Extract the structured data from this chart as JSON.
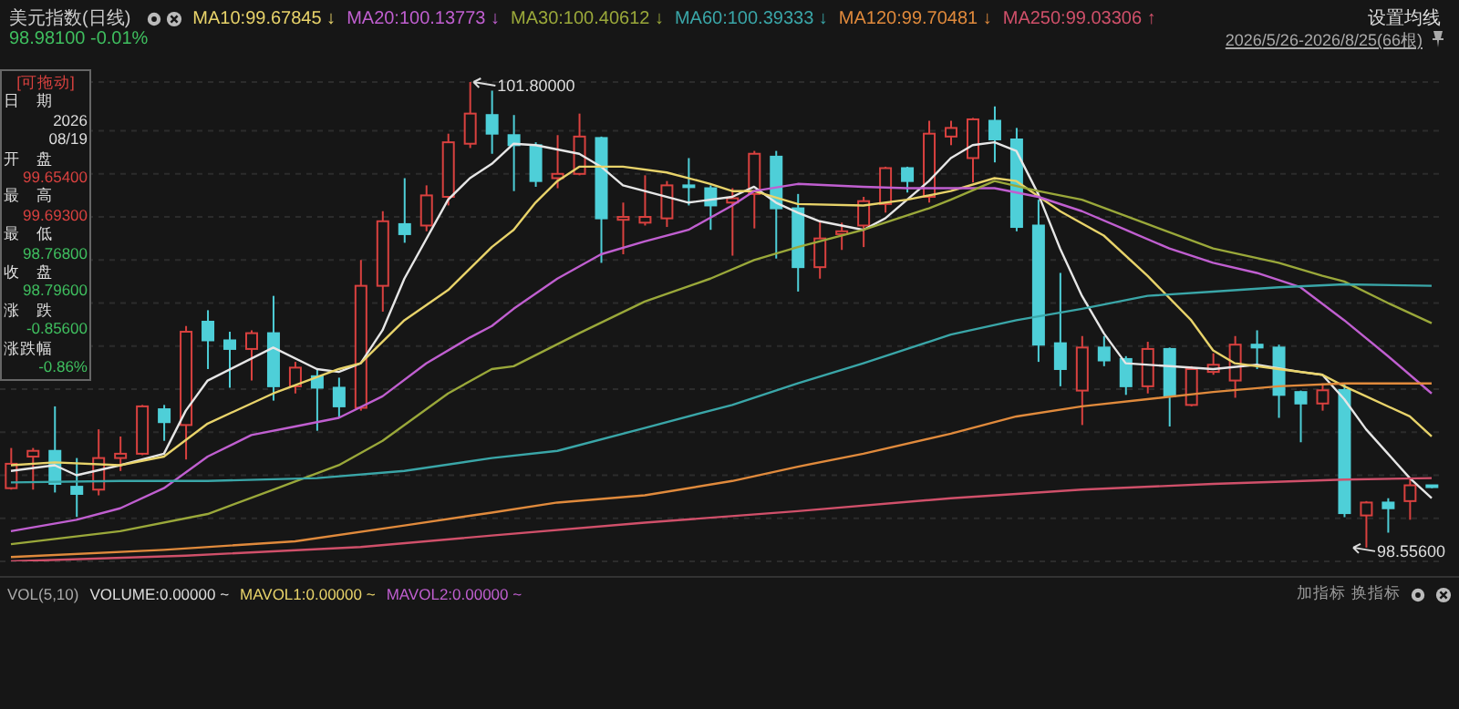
{
  "chart_data": {
    "type": "candlestick",
    "title": "美元指数(日线)",
    "legend": "top left",
    "grid": "y",
    "tick_labels": false,
    "categories": [
      null,
      null,
      null,
      null,
      null,
      null,
      null,
      null,
      null,
      null,
      null,
      null,
      null,
      null,
      null,
      null,
      null,
      null,
      null,
      null,
      null,
      null,
      null,
      null,
      null,
      null,
      null,
      null,
      null,
      null,
      null,
      null,
      null,
      null,
      null,
      null,
      null,
      null,
      null,
      null,
      null,
      null,
      null,
      null,
      null,
      null,
      null,
      null,
      null,
      null,
      null,
      null,
      null,
      null,
      null,
      null,
      null,
      null,
      null,
      null,
      null,
      null,
      null,
      null,
      null,
      null
    ],
    "ohlc": [
      [
        98.97,
        99.25,
        98.96,
        99.14
      ],
      [
        99.19,
        99.25,
        98.96,
        99.23
      ],
      [
        99.23,
        99.54,
        98.94,
        99.0
      ],
      [
        98.98,
        99.18,
        98.77,
        98.93
      ],
      [
        98.96,
        99.38,
        98.92,
        99.18
      ],
      [
        99.18,
        99.33,
        99.09,
        99.21
      ],
      [
        99.21,
        99.55,
        99.2,
        99.54
      ],
      [
        99.52,
        99.55,
        99.3,
        99.43
      ],
      [
        99.41,
        100.1,
        99.17,
        100.06
      ],
      [
        100.13,
        100.21,
        99.8,
        100.0
      ],
      [
        100.0,
        100.06,
        99.67,
        99.94
      ],
      [
        99.94,
        100.07,
        99.72,
        100.05
      ],
      [
        100.05,
        100.31,
        99.58,
        99.68
      ],
      [
        99.68,
        99.85,
        99.63,
        99.81
      ],
      [
        99.75,
        99.8,
        99.37,
        99.67
      ],
      [
        99.67,
        99.74,
        99.46,
        99.54
      ],
      [
        99.53,
        100.56,
        99.51,
        100.38
      ],
      [
        100.38,
        100.9,
        100.2,
        100.83
      ],
      [
        100.81,
        101.13,
        100.68,
        100.74
      ],
      [
        100.8,
        101.08,
        100.76,
        101.01
      ],
      [
        101.0,
        101.44,
        100.94,
        101.38
      ],
      [
        101.37,
        101.8,
        101.34,
        101.58
      ],
      [
        101.57,
        101.74,
        101.3,
        101.44
      ],
      [
        101.43,
        101.57,
        101.04,
        101.36
      ],
      [
        101.36,
        101.38,
        101.07,
        101.11
      ],
      [
        101.13,
        101.43,
        101.06,
        101.16
      ],
      [
        101.16,
        101.58,
        101.15,
        101.42
      ],
      [
        101.41,
        101.42,
        100.54,
        100.85
      ],
      [
        100.84,
        100.96,
        100.6,
        100.86
      ],
      [
        100.82,
        101.15,
        100.8,
        100.86
      ],
      [
        100.85,
        101.11,
        100.79,
        101.08
      ],
      [
        101.08,
        101.27,
        100.94,
        101.07
      ],
      [
        101.06,
        101.08,
        100.77,
        100.94
      ],
      [
        100.96,
        101.06,
        100.59,
        100.99
      ],
      [
        101.02,
        101.32,
        100.78,
        101.3
      ],
      [
        101.28,
        101.32,
        100.57,
        100.92
      ],
      [
        100.92,
        101.02,
        100.34,
        100.51
      ],
      [
        100.51,
        100.83,
        100.43,
        100.71
      ],
      [
        100.74,
        100.82,
        100.63,
        100.76
      ],
      [
        100.8,
        101.0,
        100.65,
        100.97
      ],
      [
        100.95,
        101.21,
        100.89,
        101.2
      ],
      [
        101.2,
        101.21,
        101.03,
        101.11
      ],
      [
        101.0,
        101.53,
        100.96,
        101.44
      ],
      [
        101.42,
        101.53,
        101.36,
        101.48
      ],
      [
        101.27,
        101.55,
        101.1,
        101.54
      ],
      [
        101.53,
        101.63,
        101.24,
        101.4
      ],
      [
        101.4,
        101.48,
        100.76,
        100.79
      ],
      [
        100.8,
        100.98,
        99.85,
        99.97
      ],
      [
        99.98,
        100.47,
        99.68,
        99.8
      ],
      [
        99.65,
        100.03,
        99.41,
        99.95
      ],
      [
        99.95,
        100.03,
        99.82,
        99.86
      ],
      [
        99.87,
        99.89,
        99.62,
        99.68
      ],
      [
        99.68,
        99.99,
        99.63,
        99.94
      ],
      [
        99.94,
        99.95,
        99.4,
        99.61
      ],
      [
        99.55,
        99.82,
        99.54,
        99.8
      ],
      [
        99.78,
        99.91,
        99.76,
        99.83
      ],
      [
        99.72,
        100.03,
        99.6,
        99.97
      ],
      [
        99.97,
        100.07,
        99.8,
        99.95
      ],
      [
        99.95,
        99.97,
        99.46,
        99.62
      ],
      [
        99.64,
        99.65,
        99.29,
        99.56
      ],
      [
        99.56,
        99.7,
        99.51,
        99.652
      ],
      [
        99.654,
        99.693,
        98.768,
        98.796
      ],
      [
        98.78,
        98.88,
        98.556,
        98.87
      ],
      [
        98.87,
        98.9,
        98.66,
        98.83
      ],
      [
        98.88,
        99.04,
        98.75,
        98.99
      ],
      [
        98.99,
        98.99,
        98.97,
        98.981
      ]
    ],
    "series": [
      {
        "type": "line",
        "color": "#e6e6e6",
        "values": [
          99.09,
          null,
          99.13,
          99.06,
          null,
          99.13,
          null,
          99.21,
          99.51,
          99.72,
          null,
          null,
          99.95,
          null,
          99.8,
          99.78,
          99.84,
          100.07,
          100.43,
          null,
          100.98,
          101.13,
          101.23,
          101.37,
          101.36,
          null,
          101.3,
          101.21,
          101.08,
          101.04,
          null,
          100.96,
          null,
          101.0,
          101.07,
          100.96,
          100.89,
          100.83,
          null,
          100.77,
          100.85,
          100.98,
          101.11,
          101.27,
          101.36,
          101.38,
          101.32,
          101.02,
          100.64,
          100.31,
          100.05,
          99.84,
          null,
          99.82,
          null,
          99.8,
          null,
          99.83,
          null,
          99.78,
          99.76,
          99.59,
          99.38,
          99.21,
          99.04,
          98.9
        ]
      },
      {
        "type": "line",
        "name": "MA10:99.67845 ↓",
        "color": "#e8d36a",
        "values": [
          99.13,
          null,
          99.15,
          null,
          null,
          99.13,
          null,
          99.19,
          null,
          99.42,
          null,
          null,
          99.63,
          null,
          null,
          99.8,
          99.84,
          null,
          100.14,
          null,
          100.35,
          null,
          100.65,
          100.77,
          100.96,
          101.11,
          101.21,
          null,
          101.21,
          null,
          101.17,
          null,
          101.09,
          101.04,
          101.04,
          null,
          100.95,
          null,
          null,
          100.94,
          null,
          100.98,
          null,
          101.04,
          null,
          101.13,
          101.11,
          null,
          100.9,
          null,
          100.73,
          null,
          100.45,
          null,
          100.14,
          99.93,
          99.84,
          null,
          99.8,
          null,
          99.76,
          99.68,
          99.61,
          null,
          99.47,
          99.33
        ]
      },
      {
        "type": "line",
        "name": "MA20:100.13773 ↓",
        "color": "#c05fd0",
        "values": [
          98.67,
          null,
          null,
          98.75,
          null,
          98.83,
          null,
          98.97,
          null,
          99.19,
          null,
          99.34,
          null,
          99.4,
          null,
          99.46,
          null,
          99.61,
          null,
          99.84,
          null,
          100.02,
          100.1,
          100.22,
          null,
          100.43,
          null,
          100.6,
          null,
          100.69,
          null,
          100.77,
          null,
          100.94,
          101.04,
          null,
          101.09,
          null,
          null,
          101.07,
          null,
          101.06,
          null,
          101.06,
          null,
          101.06,
          null,
          101.0,
          null,
          100.9,
          null,
          100.77,
          null,
          100.64,
          null,
          100.54,
          null,
          100.47,
          null,
          100.37,
          null,
          100.14,
          null,
          99.89,
          null,
          99.63
        ]
      },
      {
        "type": "line",
        "name": "MA30:100.40612 ↓",
        "color": "#9aa83a",
        "values": [
          98.58,
          null,
          null,
          null,
          null,
          98.67,
          null,
          null,
          null,
          98.79,
          null,
          null,
          98.96,
          null,
          null,
          99.13,
          null,
          99.3,
          null,
          null,
          99.63,
          null,
          99.8,
          99.82,
          null,
          null,
          100.05,
          null,
          null,
          100.27,
          null,
          null,
          100.43,
          null,
          100.56,
          null,
          100.65,
          null,
          null,
          100.77,
          null,
          null,
          100.92,
          100.98,
          null,
          101.11,
          null,
          101.04,
          null,
          100.98,
          null,
          null,
          100.81,
          null,
          null,
          100.64,
          null,
          null,
          100.54,
          null,
          100.45,
          100.41,
          null,
          100.26,
          null,
          100.12
        ]
      },
      {
        "type": "line",
        "name": "MA60:100.39333 ↓",
        "color": "#3aa6a8",
        "values": [
          99.01,
          null,
          null,
          null,
          null,
          99.02,
          null,
          null,
          null,
          99.02,
          null,
          null,
          null,
          null,
          99.04,
          null,
          null,
          null,
          99.09,
          null,
          null,
          null,
          99.18,
          null,
          null,
          99.23,
          null,
          null,
          null,
          99.39,
          null,
          null,
          null,
          99.55,
          null,
          null,
          99.7,
          null,
          null,
          99.84,
          null,
          null,
          null,
          100.04,
          null,
          null,
          100.14,
          null,
          null,
          100.22,
          null,
          null,
          100.31,
          null,
          null,
          100.34,
          null,
          null,
          100.37,
          null,
          null,
          100.39,
          null,
          null,
          null,
          100.38
        ]
      },
      {
        "type": "line",
        "name": "MA120:99.70481 ↓",
        "color": "#e08a3c",
        "values": [
          98.49,
          null,
          null,
          null,
          null,
          null,
          null,
          98.54,
          null,
          null,
          null,
          null,
          null,
          98.6,
          null,
          null,
          null,
          null,
          98.71,
          null,
          null,
          null,
          98.8,
          null,
          null,
          98.87,
          null,
          null,
          null,
          98.92,
          null,
          null,
          null,
          99.02,
          null,
          null,
          99.12,
          null,
          null,
          99.21,
          null,
          null,
          null,
          99.35,
          null,
          null,
          99.47,
          null,
          null,
          99.54,
          null,
          null,
          99.59,
          null,
          null,
          99.64,
          null,
          null,
          99.68,
          null,
          null,
          99.7,
          null,
          null,
          null,
          99.7
        ]
      },
      {
        "type": "line",
        "name": "MA250:99.03306 ↑",
        "color": "#d0506a",
        "values": [
          98.46,
          null,
          null,
          null,
          null,
          null,
          null,
          null,
          98.5,
          null,
          null,
          null,
          null,
          null,
          null,
          null,
          98.56,
          null,
          null,
          null,
          null,
          null,
          98.64,
          null,
          null,
          null,
          null,
          null,
          null,
          98.73,
          null,
          null,
          null,
          null,
          null,
          null,
          98.81,
          null,
          null,
          null,
          null,
          null,
          null,
          98.9,
          null,
          null,
          null,
          null,
          null,
          98.96,
          null,
          null,
          null,
          null,
          null,
          99.0,
          null,
          null,
          null,
          null,
          null,
          99.03,
          null,
          null,
          null,
          99.04
        ]
      }
    ],
    "annotations": [
      "98.98100 -0.01%",
      "设置均线",
      "2026/5/26-2026/8/25(66根)",
      "[可拖动]",
      "日　期",
      "2026",
      "08/19",
      "开　盘",
      "99.65400",
      "最　高",
      "99.69300",
      "最　低",
      "98.76800",
      "收　盘",
      "98.79600",
      "涨　跌",
      "-0.85600",
      "涨跌幅",
      "-0.86%",
      "VOL(5,10)",
      "VOLUME:0.00000 ~",
      "MAVOL1:0.00000 ~",
      "MAVOL2:0.00000 ~",
      "加指标",
      "换指标",
      "101.80000",
      "98.55600"
    ]
  }
}
